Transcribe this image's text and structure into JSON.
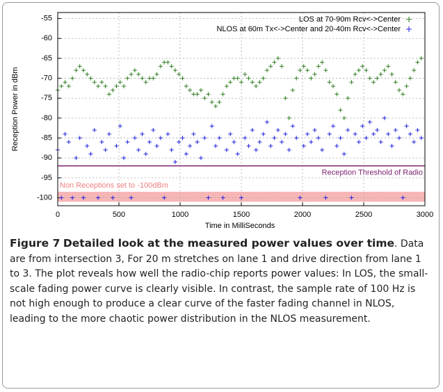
{
  "chart_data": {
    "type": "scatter",
    "xlabel": "Time in MilliSeconds",
    "ylabel": "Reception Power in dBm",
    "xlim": [
      0,
      3000
    ],
    "ylim": [
      -102,
      -53.5
    ],
    "xticks": [
      0,
      500,
      1000,
      1500,
      2000,
      2500,
      3000
    ],
    "yticks": [
      -55,
      -60,
      -65,
      -70,
      -75,
      -80,
      -85,
      -90,
      -95,
      -100
    ],
    "grid": true,
    "legend": "upper right",
    "threshold": {
      "value": -92,
      "label": "Reception Threshold of Radio",
      "color": "#7b1f6e"
    },
    "region": {
      "range": [
        -101,
        -98.5
      ],
      "label": "Non Receptions set to -100dBm",
      "color": "#f7b6b6"
    },
    "x": [
      0,
      30,
      60,
      90,
      120,
      150,
      180,
      210,
      240,
      270,
      300,
      330,
      360,
      390,
      420,
      450,
      480,
      510,
      540,
      570,
      600,
      630,
      660,
      690,
      720,
      750,
      780,
      810,
      840,
      870,
      900,
      930,
      960,
      990,
      1020,
      1050,
      1080,
      1110,
      1140,
      1170,
      1200,
      1230,
      1260,
      1290,
      1320,
      1350,
      1380,
      1410,
      1440,
      1470,
      1500,
      1530,
      1560,
      1590,
      1620,
      1650,
      1680,
      1710,
      1740,
      1770,
      1800,
      1830,
      1860,
      1890,
      1920,
      1950,
      1980,
      2010,
      2040,
      2070,
      2100,
      2130,
      2160,
      2190,
      2220,
      2250,
      2280,
      2310,
      2340,
      2370,
      2400,
      2430,
      2460,
      2490,
      2520,
      2550,
      2580,
      2610,
      2640,
      2670,
      2700,
      2730,
      2760,
      2790,
      2820,
      2850,
      2880,
      2910,
      2940,
      2970
    ],
    "series": [
      {
        "name": "LOS at 70-90m Rcv<->Center",
        "color": "#2e7d1e",
        "values": [
          -73,
          -72,
          -71,
          -72,
          -70,
          -68,
          -67,
          -68,
          -69,
          -70,
          -71,
          -72,
          -71,
          -72,
          -74,
          -73,
          -72,
          -71,
          -72,
          -70,
          -69,
          -68,
          -69,
          -70,
          -71,
          -70,
          -70,
          -69,
          -67,
          -66,
          -66,
          -67,
          -68,
          -69,
          -70,
          -72,
          -73,
          -74,
          -74,
          -73,
          -75,
          -74,
          -76,
          -77,
          -76,
          -74,
          -72,
          -71,
          -70,
          -70,
          -71,
          -69,
          -70,
          -71,
          -72,
          -71,
          -70,
          -68,
          -67,
          -66,
          -65,
          -67,
          -75,
          -80,
          -73,
          -70,
          -68,
          -67,
          -68,
          -70,
          -69,
          -67,
          -66,
          -68,
          -71,
          -72,
          -74,
          -78,
          -80,
          -75,
          -71,
          -69,
          -68,
          -67,
          -68,
          -70,
          -71,
          -70,
          -69,
          -68,
          -67,
          -69,
          -71,
          -73,
          -74,
          -72,
          -70,
          -68,
          -66,
          -65
        ]
      },
      {
        "name": "NLOS at 60m Tx<->Center and 20-40m Rcv<->Center",
        "color": "#2020e0",
        "values": [
          -88,
          -100,
          -84,
          -86,
          -100,
          -90,
          -85,
          -100,
          -87,
          -89,
          -83,
          -100,
          -86,
          -88,
          -84,
          -100,
          -87,
          -82,
          -90,
          -86,
          -100,
          -85,
          -88,
          -84,
          -89,
          -86,
          -83,
          -87,
          -85,
          -100,
          -84,
          -88,
          -91,
          -86,
          -85,
          -89,
          -87,
          -84,
          -86,
          -90,
          -85,
          -100,
          -82,
          -87,
          -85,
          -100,
          -88,
          -84,
          -86,
          -89,
          -100,
          -85,
          -87,
          -83,
          -88,
          -86,
          -84,
          -81,
          -87,
          -85,
          -83,
          -86,
          -84,
          -88,
          -82,
          -85,
          -100,
          -87,
          -84,
          -86,
          -83,
          -85,
          -88,
          -100,
          -84,
          -82,
          -87,
          -85,
          -89,
          -83,
          -100,
          -84,
          -86,
          -82,
          -85,
          -81,
          -84,
          -83,
          -86,
          -80,
          -84,
          -87,
          -83,
          -85,
          -100,
          -82,
          -84,
          -86,
          -83,
          -85
        ]
      }
    ]
  },
  "caption": {
    "label": "Figure 7",
    "title": "Detailed look at the measured power values over time",
    "text": ". Data are from intersection 3, For 20 m stretches on lane 1 and drive direction from lane 1 to 3. The plot reveals how well the radio-chip reports power values: In LOS, the small-scale fading power curve is clearly visible. In contrast, the sample rate of 100 Hz is not high enough to produce a clear curve of the faster fading channel in NLOS, leading to the more chaotic power distribution in the NLOS measurement."
  }
}
